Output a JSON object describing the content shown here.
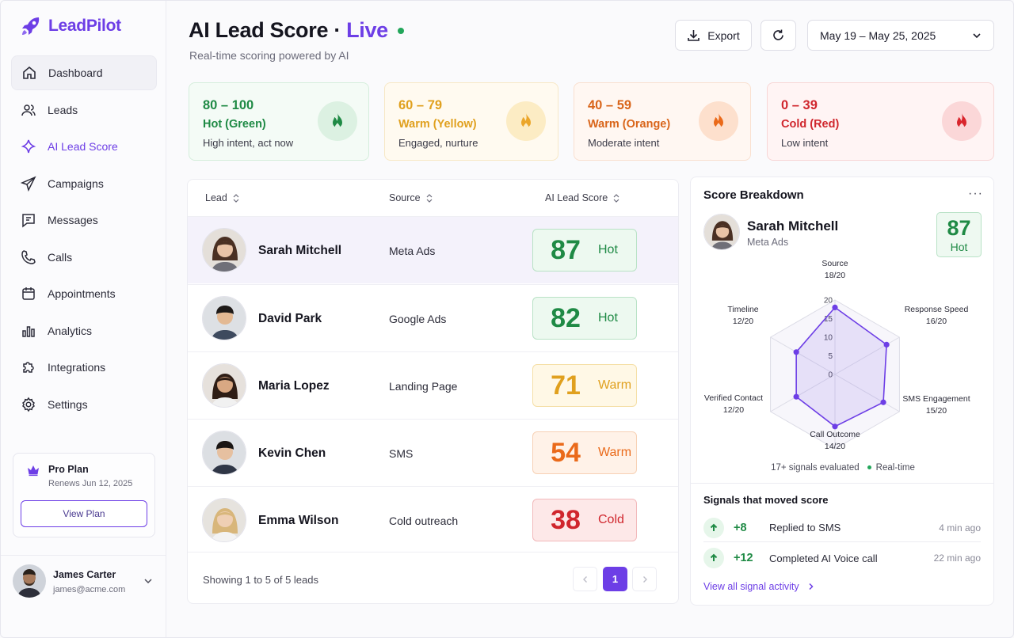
{
  "app": {
    "name": "LeadPilot"
  },
  "nav": [
    {
      "label": "Dashboard",
      "icon": "home-icon"
    },
    {
      "label": "Leads",
      "icon": "users-icon"
    },
    {
      "label": "AI Lead Score",
      "icon": "sparkle-icon"
    },
    {
      "label": "Campaigns",
      "icon": "send-icon"
    },
    {
      "label": "Messages",
      "icon": "message-icon"
    },
    {
      "label": "Calls",
      "icon": "phone-icon"
    },
    {
      "label": "Appointments",
      "icon": "calendar-icon"
    },
    {
      "label": "Analytics",
      "icon": "bar-chart-icon"
    },
    {
      "label": "Integrations",
      "icon": "puzzle-icon"
    },
    {
      "label": "Settings",
      "icon": "gear-icon"
    }
  ],
  "plan": {
    "title": "Pro Plan",
    "renews": "Renews Jun 12, 2025",
    "button": "View Plan"
  },
  "user": {
    "name": "James Carter",
    "email": "james@acme.com"
  },
  "header": {
    "title": "AI Lead Score ·",
    "live": "Live",
    "subtitle": "Real-time scoring powered by AI",
    "export_label": "Export",
    "date_range": "May 19 – May 25, 2025"
  },
  "tiers": [
    {
      "range": "80 – 100",
      "label": "Hot (Green)",
      "desc": "High intent, act now",
      "color": "#1f8a45"
    },
    {
      "range": "60 – 79",
      "label": "Warm (Yellow)",
      "desc": "Engaged, nurture",
      "color": "#e0a01e"
    },
    {
      "range": "40 – 59",
      "label": "Warm (Orange)",
      "desc": "Moderate intent",
      "color": "#ea6a1a"
    },
    {
      "range": "0 – 39",
      "label": "Cold (Red)",
      "desc": "Low intent",
      "color": "#d0262d"
    }
  ],
  "table": {
    "columns": [
      "Lead",
      "Source",
      "AI Lead Score"
    ],
    "rows": [
      {
        "name": "Sarah Mitchell",
        "source": "Meta Ads",
        "score": "87",
        "tag": "Hot"
      },
      {
        "name": "David Park",
        "source": "Google Ads",
        "score": "82",
        "tag": "Hot"
      },
      {
        "name": "Maria Lopez",
        "source": "Landing Page",
        "score": "71",
        "tag": "Warm"
      },
      {
        "name": "Kevin Chen",
        "source": "SMS",
        "score": "54",
        "tag": "Warm"
      },
      {
        "name": "Emma Wilson",
        "source": "Cold outreach",
        "score": "38",
        "tag": "Cold"
      }
    ],
    "showing": "Showing 1 to 5 of 5 leads",
    "current_page": "1"
  },
  "breakdown": {
    "title": "Score Breakdown",
    "lead_name": "Sarah Mitchell",
    "lead_source": "Meta Ads",
    "score": "87",
    "tag": "Hot",
    "axes": [
      {
        "name": "Source",
        "value": "18/20"
      },
      {
        "name": "Response Speed",
        "value": "16/20"
      },
      {
        "name": "SMS Engagement",
        "value": "15/20"
      },
      {
        "name": "Call Outcome",
        "value": "14/20"
      },
      {
        "name": "Verified Contact",
        "value": "12/20"
      },
      {
        "name": "Timeline",
        "value": "12/20"
      }
    ],
    "ticks": [
      "0",
      "5",
      "10",
      "15",
      "20"
    ],
    "note": "17+ signals evaluated",
    "realtime": "Real-time",
    "signals_title": "Signals that moved score",
    "signals": [
      {
        "delta": "+8",
        "text": "Replied to SMS",
        "time": "4 min ago"
      },
      {
        "delta": "+12",
        "text": "Completed AI Voice call",
        "time": "22 min ago"
      }
    ],
    "link": "View all signal activity"
  }
}
